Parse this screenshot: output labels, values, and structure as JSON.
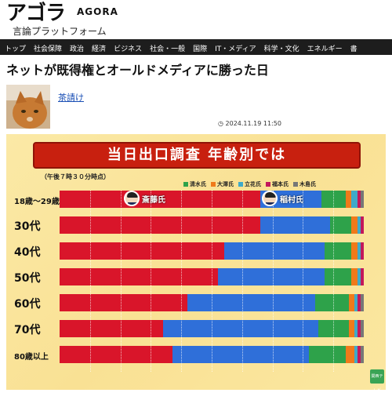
{
  "site": {
    "logo": "アゴラ",
    "logo_en": "AGORA",
    "tagline": "言論プラットフォーム"
  },
  "nav": {
    "items": [
      "トップ",
      "社会保障",
      "政治",
      "経済",
      "ビジネス",
      "社会・一般",
      "国際",
      "IT・メディア",
      "科学・文化",
      "エネルギー",
      "書"
    ]
  },
  "article": {
    "title": "ネットが既得権とオールドメディアに勝った日",
    "author": "茶請け",
    "date": "◷ 2024.11.19 11:50"
  },
  "chart_data": {
    "type": "bar",
    "title": "当日出口調査 年齢別では",
    "subtitle": "（午後７時３０分時点）",
    "stacked": true,
    "orientation": "horizontal",
    "categories": [
      "18歳〜29歳",
      "30代",
      "40代",
      "50代",
      "60代",
      "70代",
      "80歳以上"
    ],
    "legend": [
      "清水氏",
      "大澤氏",
      "立花氏",
      "福本氏",
      "木島氏"
    ],
    "annotations": [
      "斎藤氏",
      "稲村氏"
    ],
    "series": [
      {
        "name": "斎藤氏",
        "color": "#d9152a",
        "values": [
          66,
          66,
          54,
          52,
          42,
          34,
          37
        ]
      },
      {
        "name": "稲村氏",
        "color": "#2f6fd9",
        "values": [
          20,
          23,
          33,
          35,
          42,
          51,
          45
        ]
      },
      {
        "name": "清水氏",
        "color": "#2ea24a",
        "values": [
          8,
          7,
          9,
          9,
          11,
          10,
          12
        ]
      },
      {
        "name": "大澤氏",
        "color": "#f07a1a",
        "values": [
          2,
          2,
          2,
          2,
          2,
          2,
          3
        ]
      },
      {
        "name": "立花氏",
        "color": "#3fa9c9",
        "values": [
          2,
          1,
          1,
          1,
          1,
          1,
          1
        ]
      },
      {
        "name": "福本氏",
        "color": "#c2185b",
        "values": [
          1,
          1,
          1,
          1,
          1,
          1,
          1
        ]
      },
      {
        "name": "木島氏",
        "color": "#777777",
        "values": [
          1,
          0,
          0,
          0,
          1,
          1,
          1
        ]
      }
    ],
    "xlim": [
      0,
      100
    ],
    "grid": true,
    "legend_position": "top-right"
  },
  "badge": "関西テレビ"
}
